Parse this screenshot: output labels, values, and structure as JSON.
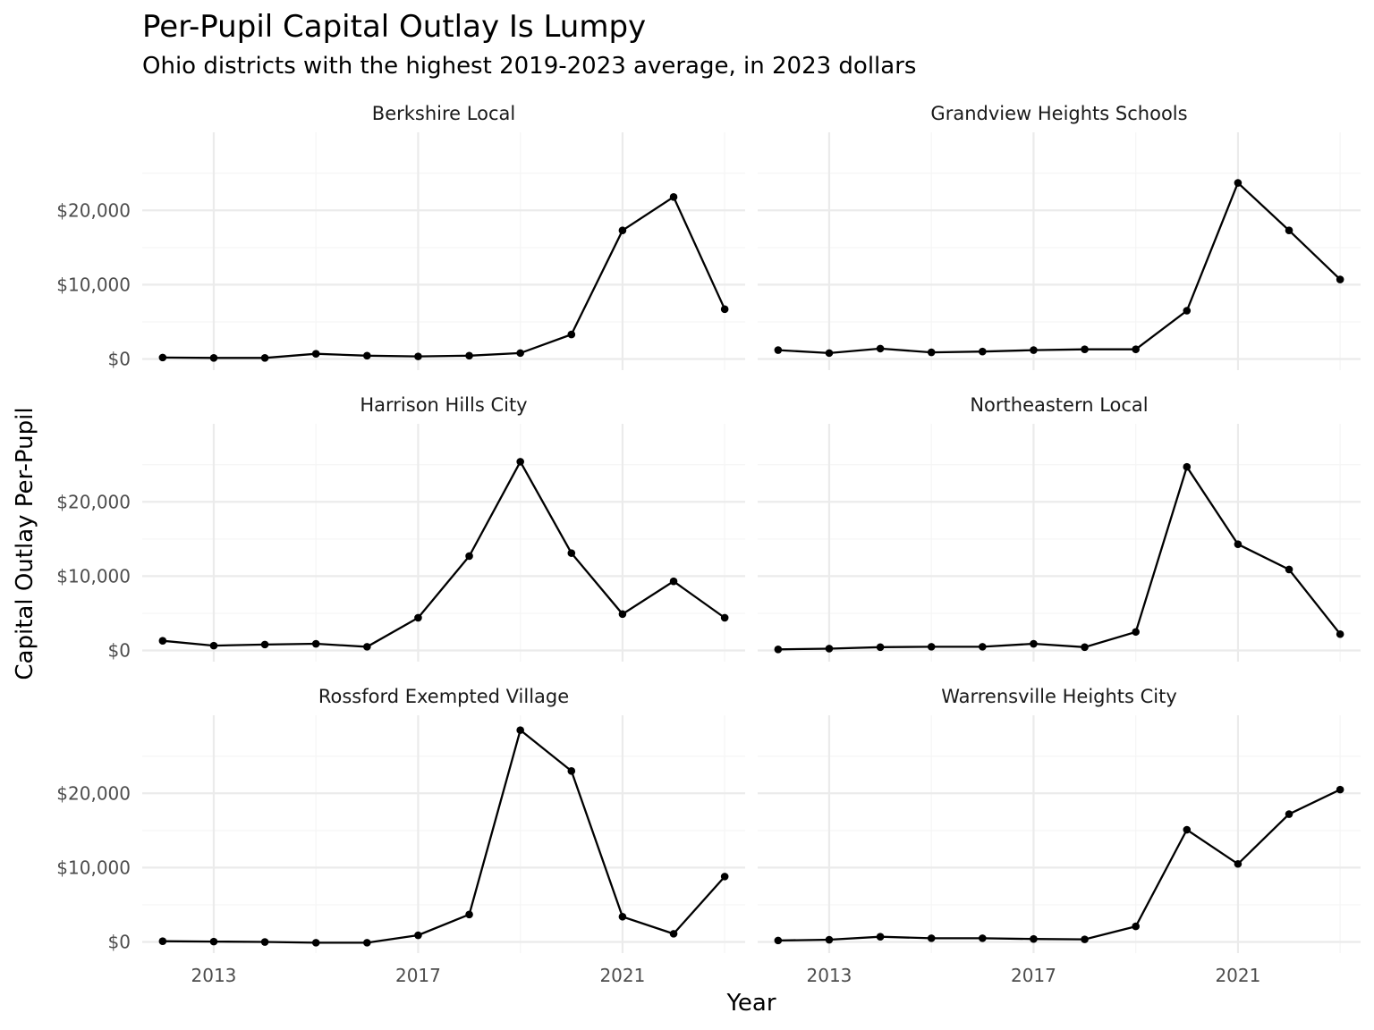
{
  "chart_data": {
    "type": "line",
    "title": "Per-Pupil Capital Outlay Is Lumpy",
    "subtitle": "Ohio districts with the highest 2019-2023 average, in 2023 dollars",
    "xlabel": "Year",
    "ylabel": "Capital Outlay Per-Pupil",
    "x_ticks": [
      2013,
      2017,
      2021
    ],
    "y_ticks": [
      0,
      10000,
      20000
    ],
    "y_tick_labels": [
      "$0",
      "$10,000",
      "$20,000"
    ],
    "xlim": [
      2011.6,
      2023.4
    ],
    "ylim": [
      -1500,
      30500
    ],
    "grid": true,
    "facet_layout": "3 rows x 2 columns",
    "x": [
      2012,
      2013,
      2014,
      2015,
      2016,
      2017,
      2018,
      2019,
      2020,
      2021,
      2022,
      2023
    ],
    "series": [
      {
        "name": "Berkshire Local",
        "values": [
          200,
          150,
          150,
          700,
          450,
          350,
          450,
          800,
          3300,
          17300,
          21800,
          6700
        ]
      },
      {
        "name": "Grandview Heights Schools",
        "values": [
          1200,
          800,
          1400,
          900,
          1000,
          1200,
          1300,
          1300,
          6500,
          23700,
          17300,
          10700
        ]
      },
      {
        "name": "Harrison Hills City",
        "values": [
          1300,
          650,
          800,
          900,
          500,
          4400,
          12700,
          25400,
          13100,
          4900,
          9300,
          4400
        ]
      },
      {
        "name": "Northeastern Local",
        "values": [
          150,
          250,
          450,
          500,
          500,
          900,
          450,
          2500,
          24700,
          14300,
          10900,
          2200
        ]
      },
      {
        "name": "Rossford Exempted Village",
        "values": [
          100,
          50,
          0,
          -100,
          -100,
          900,
          3700,
          28500,
          23000,
          3400,
          1100,
          8800
        ]
      },
      {
        "name": "Warrensville Heights City",
        "values": [
          200,
          300,
          700,
          500,
          500,
          400,
          350,
          2100,
          15100,
          10500,
          17200,
          20500
        ]
      }
    ]
  }
}
